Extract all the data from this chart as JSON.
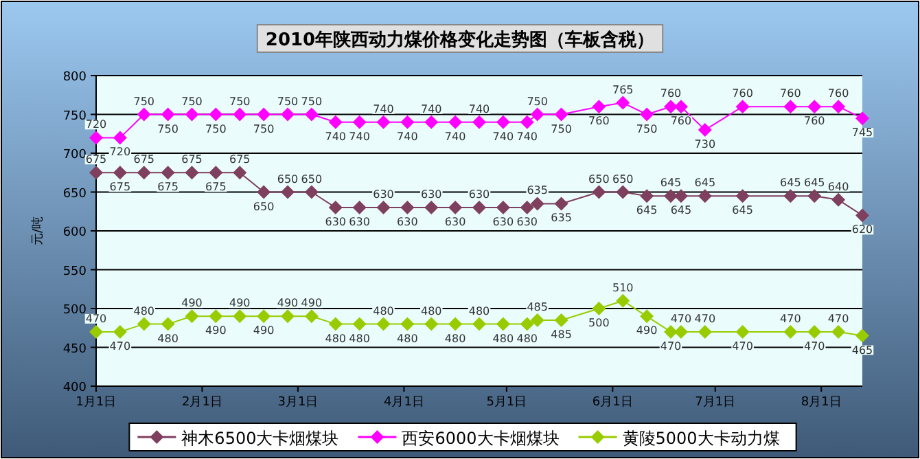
{
  "chart_data": {
    "type": "line",
    "title": "2010年陕西动力煤价格变化走势图（车板含税）",
    "ylabel": "元/吨",
    "x": [
      "--01-01",
      "--01-08",
      "--01-15",
      "--01-22",
      "--01-29",
      "--02-05",
      "--02-12",
      "--02-19",
      "--02-26",
      "--03-05",
      "--03-12",
      "--03-19",
      "--03-26",
      "--04-02",
      "--04-09",
      "--04-16",
      "--04-23",
      "--04-30",
      "--05-07",
      "--05-10",
      "--05-17",
      "--05-28",
      "--06-04",
      "--06-11",
      "--06-18",
      "--06-21",
      "--06-28",
      "--07-09",
      "--07-23",
      "--07-30",
      "--08-06",
      "--08-13"
    ],
    "xlim": [
      "--01-01",
      "--08-13"
    ],
    "xticks": [
      {
        "value": "--01-01",
        "label": "1月1日"
      },
      {
        "value": "--02-01",
        "label": "2月1日"
      },
      {
        "value": "--03-01",
        "label": "3月1日"
      },
      {
        "value": "--04-01",
        "label": "4月1日"
      },
      {
        "value": "--05-01",
        "label": "5月1日"
      },
      {
        "value": "--06-01",
        "label": "6月1日"
      },
      {
        "value": "--07-01",
        "label": "7月1日"
      },
      {
        "value": "--08-01",
        "label": "8月1日"
      }
    ],
    "ylim": [
      400,
      800
    ],
    "yticks": [
      400,
      450,
      500,
      550,
      600,
      650,
      700,
      750,
      800
    ],
    "series": [
      {
        "name": "神木6500大卡烟煤块",
        "color": "#7f3f5f",
        "values": [
          675,
          675,
          675,
          675,
          675,
          675,
          675,
          650,
          650,
          650,
          630,
          630,
          630,
          630,
          630,
          630,
          630,
          630,
          630,
          635,
          635,
          650,
          650,
          645,
          645,
          645,
          645,
          645,
          645,
          645,
          640,
          620
        ]
      },
      {
        "name": "西安6000大卡烟煤块",
        "color": "#ff00ff",
        "values": [
          720,
          720,
          750,
          750,
          750,
          750,
          750,
          750,
          750,
          750,
          740,
          740,
          740,
          740,
          740,
          740,
          740,
          740,
          740,
          750,
          750,
          760,
          765,
          750,
          760,
          760,
          730,
          760,
          760,
          760,
          760,
          745
        ]
      },
      {
        "name": "黄陵5000大卡动力煤",
        "color": "#99cc00",
        "values": [
          470,
          470,
          480,
          480,
          490,
          490,
          490,
          490,
          490,
          490,
          480,
          480,
          480,
          480,
          480,
          480,
          480,
          480,
          480,
          485,
          485,
          500,
          510,
          490,
          470,
          470,
          470,
          470,
          470,
          470,
          470,
          465
        ]
      }
    ],
    "grid": "y",
    "legend": "bottom",
    "marker": "diamond",
    "data_labels": true
  }
}
